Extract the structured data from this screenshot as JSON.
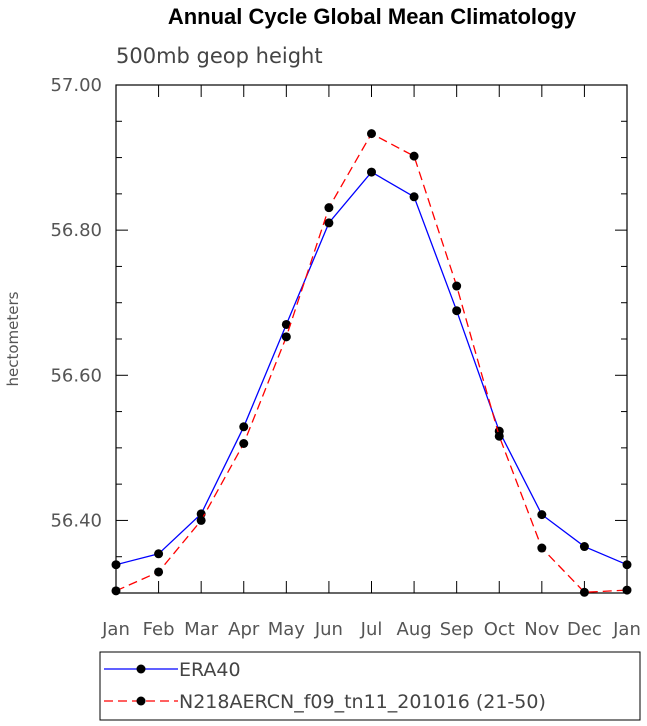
{
  "chart_data": {
    "type": "line",
    "title": "Annual Cycle Global Mean Climatology",
    "subtitle": "500mb geop height",
    "xlabel": "",
    "ylabel": "hectometers",
    "categories": [
      "Jan",
      "Feb",
      "Mar",
      "Apr",
      "May",
      "Jun",
      "Jul",
      "Aug",
      "Sep",
      "Oct",
      "Nov",
      "Dec",
      "Jan"
    ],
    "ylim": [
      56.3,
      57.0
    ],
    "yticks": [
      "56.40",
      "56.60",
      "56.80",
      "57.00"
    ],
    "grid": false,
    "legend_position": "bottom",
    "series": [
      {
        "name": "ERA40",
        "color": "#0000ff",
        "dash": "solid",
        "values": [
          56.339,
          56.354,
          56.409,
          56.529,
          56.67,
          56.81,
          56.88,
          56.846,
          56.689,
          56.523,
          56.408,
          56.364,
          56.339
        ]
      },
      {
        "name": "N218AERCN_f09_tn11_201016 (21-50)",
        "color": "#ff0000",
        "dash": "dashed",
        "values": [
          56.303,
          56.329,
          56.4,
          56.506,
          56.653,
          56.831,
          56.933,
          56.902,
          56.723,
          56.516,
          56.362,
          56.301,
          56.304
        ]
      }
    ]
  }
}
